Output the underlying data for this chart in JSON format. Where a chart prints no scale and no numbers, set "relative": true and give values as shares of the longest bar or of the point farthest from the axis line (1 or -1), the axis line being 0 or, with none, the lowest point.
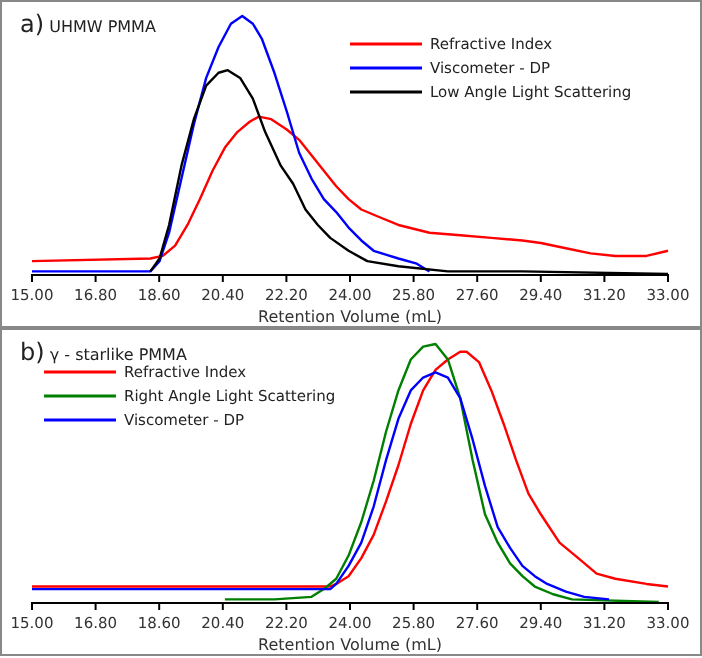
{
  "chart_data": [
    {
      "type": "line",
      "title": "a) UHMW PMMA",
      "xlabel": "Retention Volume (mL)",
      "relative": true,
      "xlim": [
        15,
        33
      ],
      "xticks": [
        {
          "value": 15,
          "label": "15.00"
        },
        {
          "value": 16.8,
          "label": "16.80"
        },
        {
          "value": 18.6,
          "label": "18.60"
        },
        {
          "value": 20.4,
          "label": "20.40"
        },
        {
          "value": 22.2,
          "label": "22.20"
        },
        {
          "value": 24,
          "label": "24.00"
        },
        {
          "value": 25.8,
          "label": "25.80"
        },
        {
          "value": 27.6,
          "label": "27.60"
        },
        {
          "value": 29.4,
          "label": "29.40"
        },
        {
          "value": 31.2,
          "label": "31.20"
        },
        {
          "value": 33,
          "label": "33.00"
        }
      ],
      "legend": "top right",
      "grid": false,
      "series": [
        {
          "name": "Refractive Index",
          "color": "#ff0000",
          "x": [
            15.0,
            18.35,
            18.7,
            19.05,
            19.4,
            19.75,
            20.11,
            20.46,
            20.81,
            21.16,
            21.42,
            21.77,
            22.21,
            22.56,
            22.91,
            23.26,
            23.61,
            23.96,
            24.32,
            24.84,
            25.37,
            26.25,
            27.12,
            28.0,
            28.88,
            29.4,
            30.11,
            30.81,
            31.51,
            32.39,
            33.0
          ],
          "values": [
            0.05,
            0.06,
            0.07,
            0.11,
            0.19,
            0.29,
            0.4,
            0.49,
            0.55,
            0.59,
            0.61,
            0.6,
            0.56,
            0.52,
            0.46,
            0.4,
            0.34,
            0.29,
            0.25,
            0.22,
            0.19,
            0.16,
            0.15,
            0.14,
            0.13,
            0.12,
            0.1,
            0.08,
            0.07,
            0.07,
            0.09
          ]
        },
        {
          "name": "Viscometer - DP",
          "color": "#0000ff",
          "x": [
            15.0,
            18.35,
            18.61,
            18.88,
            19.23,
            19.58,
            19.93,
            20.28,
            20.63,
            20.95,
            21.25,
            21.51,
            21.86,
            22.21,
            22.56,
            22.91,
            23.26,
            23.61,
            23.96,
            24.32,
            24.67,
            25.37,
            25.89,
            26.25
          ],
          "values": [
            0.01,
            0.01,
            0.05,
            0.16,
            0.37,
            0.58,
            0.76,
            0.88,
            0.97,
            1.0,
            0.97,
            0.91,
            0.78,
            0.63,
            0.47,
            0.37,
            0.29,
            0.24,
            0.18,
            0.13,
            0.09,
            0.06,
            0.04,
            0.01
          ]
        },
        {
          "name": "Low Angle Light Scattering",
          "color": "#000000",
          "x": [
            18.35,
            18.61,
            18.88,
            19.23,
            19.58,
            19.93,
            20.28,
            20.54,
            20.89,
            21.25,
            21.6,
            22.04,
            22.39,
            22.74,
            23.09,
            23.44,
            23.96,
            24.49,
            25.37,
            26.77,
            28.88,
            33.0
          ],
          "values": [
            0.01,
            0.06,
            0.19,
            0.42,
            0.6,
            0.73,
            0.78,
            0.79,
            0.76,
            0.68,
            0.55,
            0.42,
            0.35,
            0.25,
            0.19,
            0.14,
            0.09,
            0.05,
            0.03,
            0.01,
            0.01,
            0.0
          ]
        }
      ]
    },
    {
      "type": "line",
      "title": "b) γ - starlike PMMA",
      "xlabel": "Retention Volume (mL)",
      "relative": true,
      "xlim": [
        15,
        33
      ],
      "xticks": [
        {
          "value": 15,
          "label": "15.00"
        },
        {
          "value": 16.8,
          "label": "16.80"
        },
        {
          "value": 18.6,
          "label": "18.60"
        },
        {
          "value": 20.4,
          "label": "20.40"
        },
        {
          "value": 22.2,
          "label": "22.20"
        },
        {
          "value": 24,
          "label": "24.00"
        },
        {
          "value": 25.8,
          "label": "25.80"
        },
        {
          "value": 27.6,
          "label": "27.60"
        },
        {
          "value": 29.4,
          "label": "29.40"
        },
        {
          "value": 31.2,
          "label": "31.20"
        },
        {
          "value": 33,
          "label": "33.00"
        }
      ],
      "legend": "top left",
      "grid": false,
      "series": [
        {
          "name": "Refractive Index",
          "color": "#ff0000",
          "x": [
            15.0,
            23.44,
            23.61,
            23.96,
            24.32,
            24.67,
            25.02,
            25.37,
            25.72,
            26.07,
            26.42,
            26.77,
            27.12,
            27.3,
            27.65,
            28.0,
            28.35,
            28.7,
            29.05,
            29.4,
            29.93,
            30.46,
            30.98,
            31.51,
            32.39,
            33.0
          ],
          "values": [
            0.06,
            0.06,
            0.07,
            0.1,
            0.17,
            0.26,
            0.39,
            0.53,
            0.69,
            0.82,
            0.9,
            0.94,
            0.97,
            0.97,
            0.93,
            0.82,
            0.69,
            0.55,
            0.42,
            0.34,
            0.23,
            0.17,
            0.11,
            0.09,
            0.07,
            0.06
          ]
        },
        {
          "name": "Right Angle Light Scattering",
          "color": "#008000",
          "x": [
            20.46,
            21.86,
            22.91,
            23.26,
            23.61,
            23.96,
            24.32,
            24.67,
            25.02,
            25.37,
            25.72,
            26.07,
            26.42,
            26.77,
            27.12,
            27.47,
            27.82,
            28.18,
            28.53,
            28.88,
            29.23,
            29.75,
            30.28,
            32.74
          ],
          "values": [
            0.01,
            0.01,
            0.02,
            0.05,
            0.09,
            0.18,
            0.31,
            0.47,
            0.66,
            0.82,
            0.94,
            0.99,
            1.0,
            0.94,
            0.79,
            0.55,
            0.34,
            0.23,
            0.15,
            0.1,
            0.06,
            0.03,
            0.01,
            0.0
          ]
        },
        {
          "name": "Viscometer - DP",
          "color": "#0000ff",
          "x": [
            15.0,
            23.44,
            23.61,
            23.96,
            24.32,
            24.67,
            25.02,
            25.37,
            25.72,
            26.07,
            26.42,
            26.77,
            27.12,
            27.47,
            27.82,
            28.18,
            28.53,
            28.88,
            29.23,
            29.58,
            30.11,
            30.63,
            31.33
          ],
          "values": [
            0.05,
            0.05,
            0.07,
            0.14,
            0.23,
            0.37,
            0.55,
            0.71,
            0.82,
            0.87,
            0.89,
            0.87,
            0.79,
            0.63,
            0.45,
            0.29,
            0.21,
            0.14,
            0.1,
            0.07,
            0.04,
            0.02,
            0.01
          ]
        }
      ]
    }
  ]
}
